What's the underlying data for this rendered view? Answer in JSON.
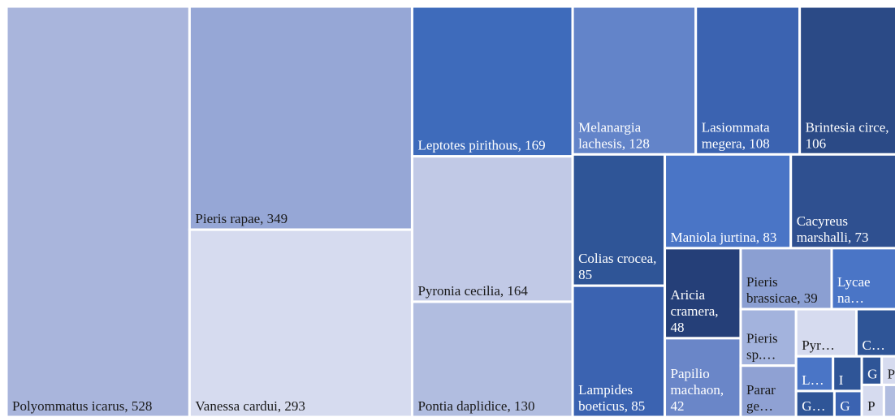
{
  "chart_data": {
    "type": "treemap",
    "labels": [
      "Polyommatus icarus, 528",
      "Pieris rapae, 349",
      "Vanessa cardui, 293",
      "Leptotes pirithous, 169",
      "Pyronia cecilia, 164",
      "Pontia daplidice, 130",
      "Melanargia lachesis, 128",
      "Lasiommata megera, 108",
      "Brintesia circe, 106",
      "Colias crocea, 85",
      "Lampides boeticus, 85",
      "Maniola jurtina, 83",
      "Cacyreus marshalli, 73",
      "Aricia cramera, 48",
      "Papilio machaon, 42",
      "Pieris brassicae, 39",
      "Lycae na…",
      "Pieris sp.…",
      "Parar ge…",
      "Pyr…",
      "C…",
      "L…",
      "I",
      "G…",
      "G",
      "G",
      "P",
      "P",
      null
    ],
    "values": [
      528,
      349,
      293,
      169,
      164,
      130,
      128,
      108,
      106,
      85,
      85,
      83,
      73,
      48,
      42,
      39,
      30,
      22,
      20,
      20,
      15,
      9,
      7,
      7,
      5,
      4,
      4,
      5,
      4
    ],
    "colors": [
      "#a9b5dc",
      "#96a7d6",
      "#d6dbef",
      "#3e6bbb",
      "#c1c9e6",
      "#b1bde0",
      "#6384c9",
      "#3b63b1",
      "#2b4a86",
      "#2f5597",
      "#3b63b1",
      "#4a75c6",
      "#2f5090",
      "#253f78",
      "#6a86c8",
      "#8b9fd2",
      "#4a75c6",
      "#a3b3dd",
      "#8fa1d3",
      "#d6dbef",
      "#2f5597",
      "#4a75c6",
      "#2f5597",
      "#2f5597",
      "#3b63b1",
      "#2f5597",
      "#d6dbef",
      "#d6dbef",
      "#b1bde0"
    ]
  }
}
